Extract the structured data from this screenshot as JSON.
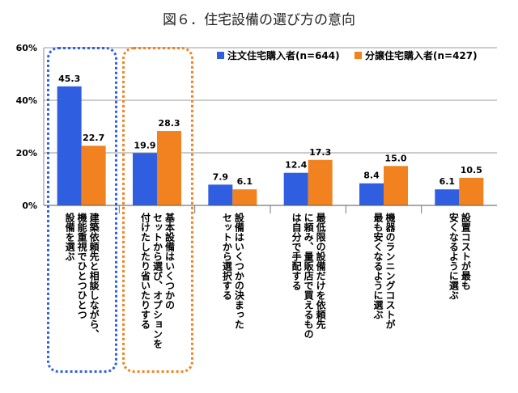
{
  "chart_data": {
    "type": "bar",
    "title": "図６．住宅設備の選び方の意向",
    "categories": [
      "建築依頼先と相談しながら、機能重視でひとつひとつ設備を選ぶ",
      "基本設備はいくつかのセットから選び、オプションを付けたしたり省いたりする",
      "設備はいくつかの決まったセットから選択する",
      "最低限の設備だけを依頼先に頼み、量販店で買えるものは自分で手配する",
      "機器のランニングコストが最も安くなるように選ぶ",
      "設置コストが最も安くなるように選ぶ"
    ],
    "category_lines": [
      "建築依頼先と相談しながら、\n機能重視でひとつひとつ\n設備を選ぶ",
      "基本設備はいくつかの\nセットから選び、オプションを\n付けたしたり省いたりする",
      "設備はいくつかの決まった\nセットから選択する",
      "最低限の設備だけを依頼先\nに頼み、量販店で買えるもの\nは自分で手配する",
      "機器のランニングコストが\n最も安くなるように選ぶ",
      "設置コストが最も\n安くなるように選ぶ"
    ],
    "series": [
      {
        "name": "注文住宅購入者(n=644)",
        "color": "#2f5fe0",
        "values": [
          45.3,
          19.9,
          7.9,
          12.4,
          8.4,
          6.1
        ]
      },
      {
        "name": "分譲住宅購入者(n=427)",
        "color": "#f28220",
        "values": [
          22.7,
          28.3,
          6.1,
          17.3,
          15.0,
          10.5
        ]
      }
    ],
    "value_labels": [
      [
        "45.3",
        "19.9",
        "7.9",
        "12.4",
        "8.4",
        "6.1"
      ],
      [
        "22.7",
        "28.3",
        "6.1",
        "17.3",
        "15.0",
        "10.5"
      ]
    ],
    "yticks": [
      "60%",
      "40%",
      "20%",
      "0%"
    ],
    "ytick_values": [
      60,
      40,
      20,
      0
    ],
    "ylim": [
      0,
      60
    ],
    "xlabel": "",
    "ylabel": "",
    "grid": true,
    "legend": "top-right",
    "highlight_colors": [
      "#2f5fe0",
      "#f28220"
    ]
  }
}
